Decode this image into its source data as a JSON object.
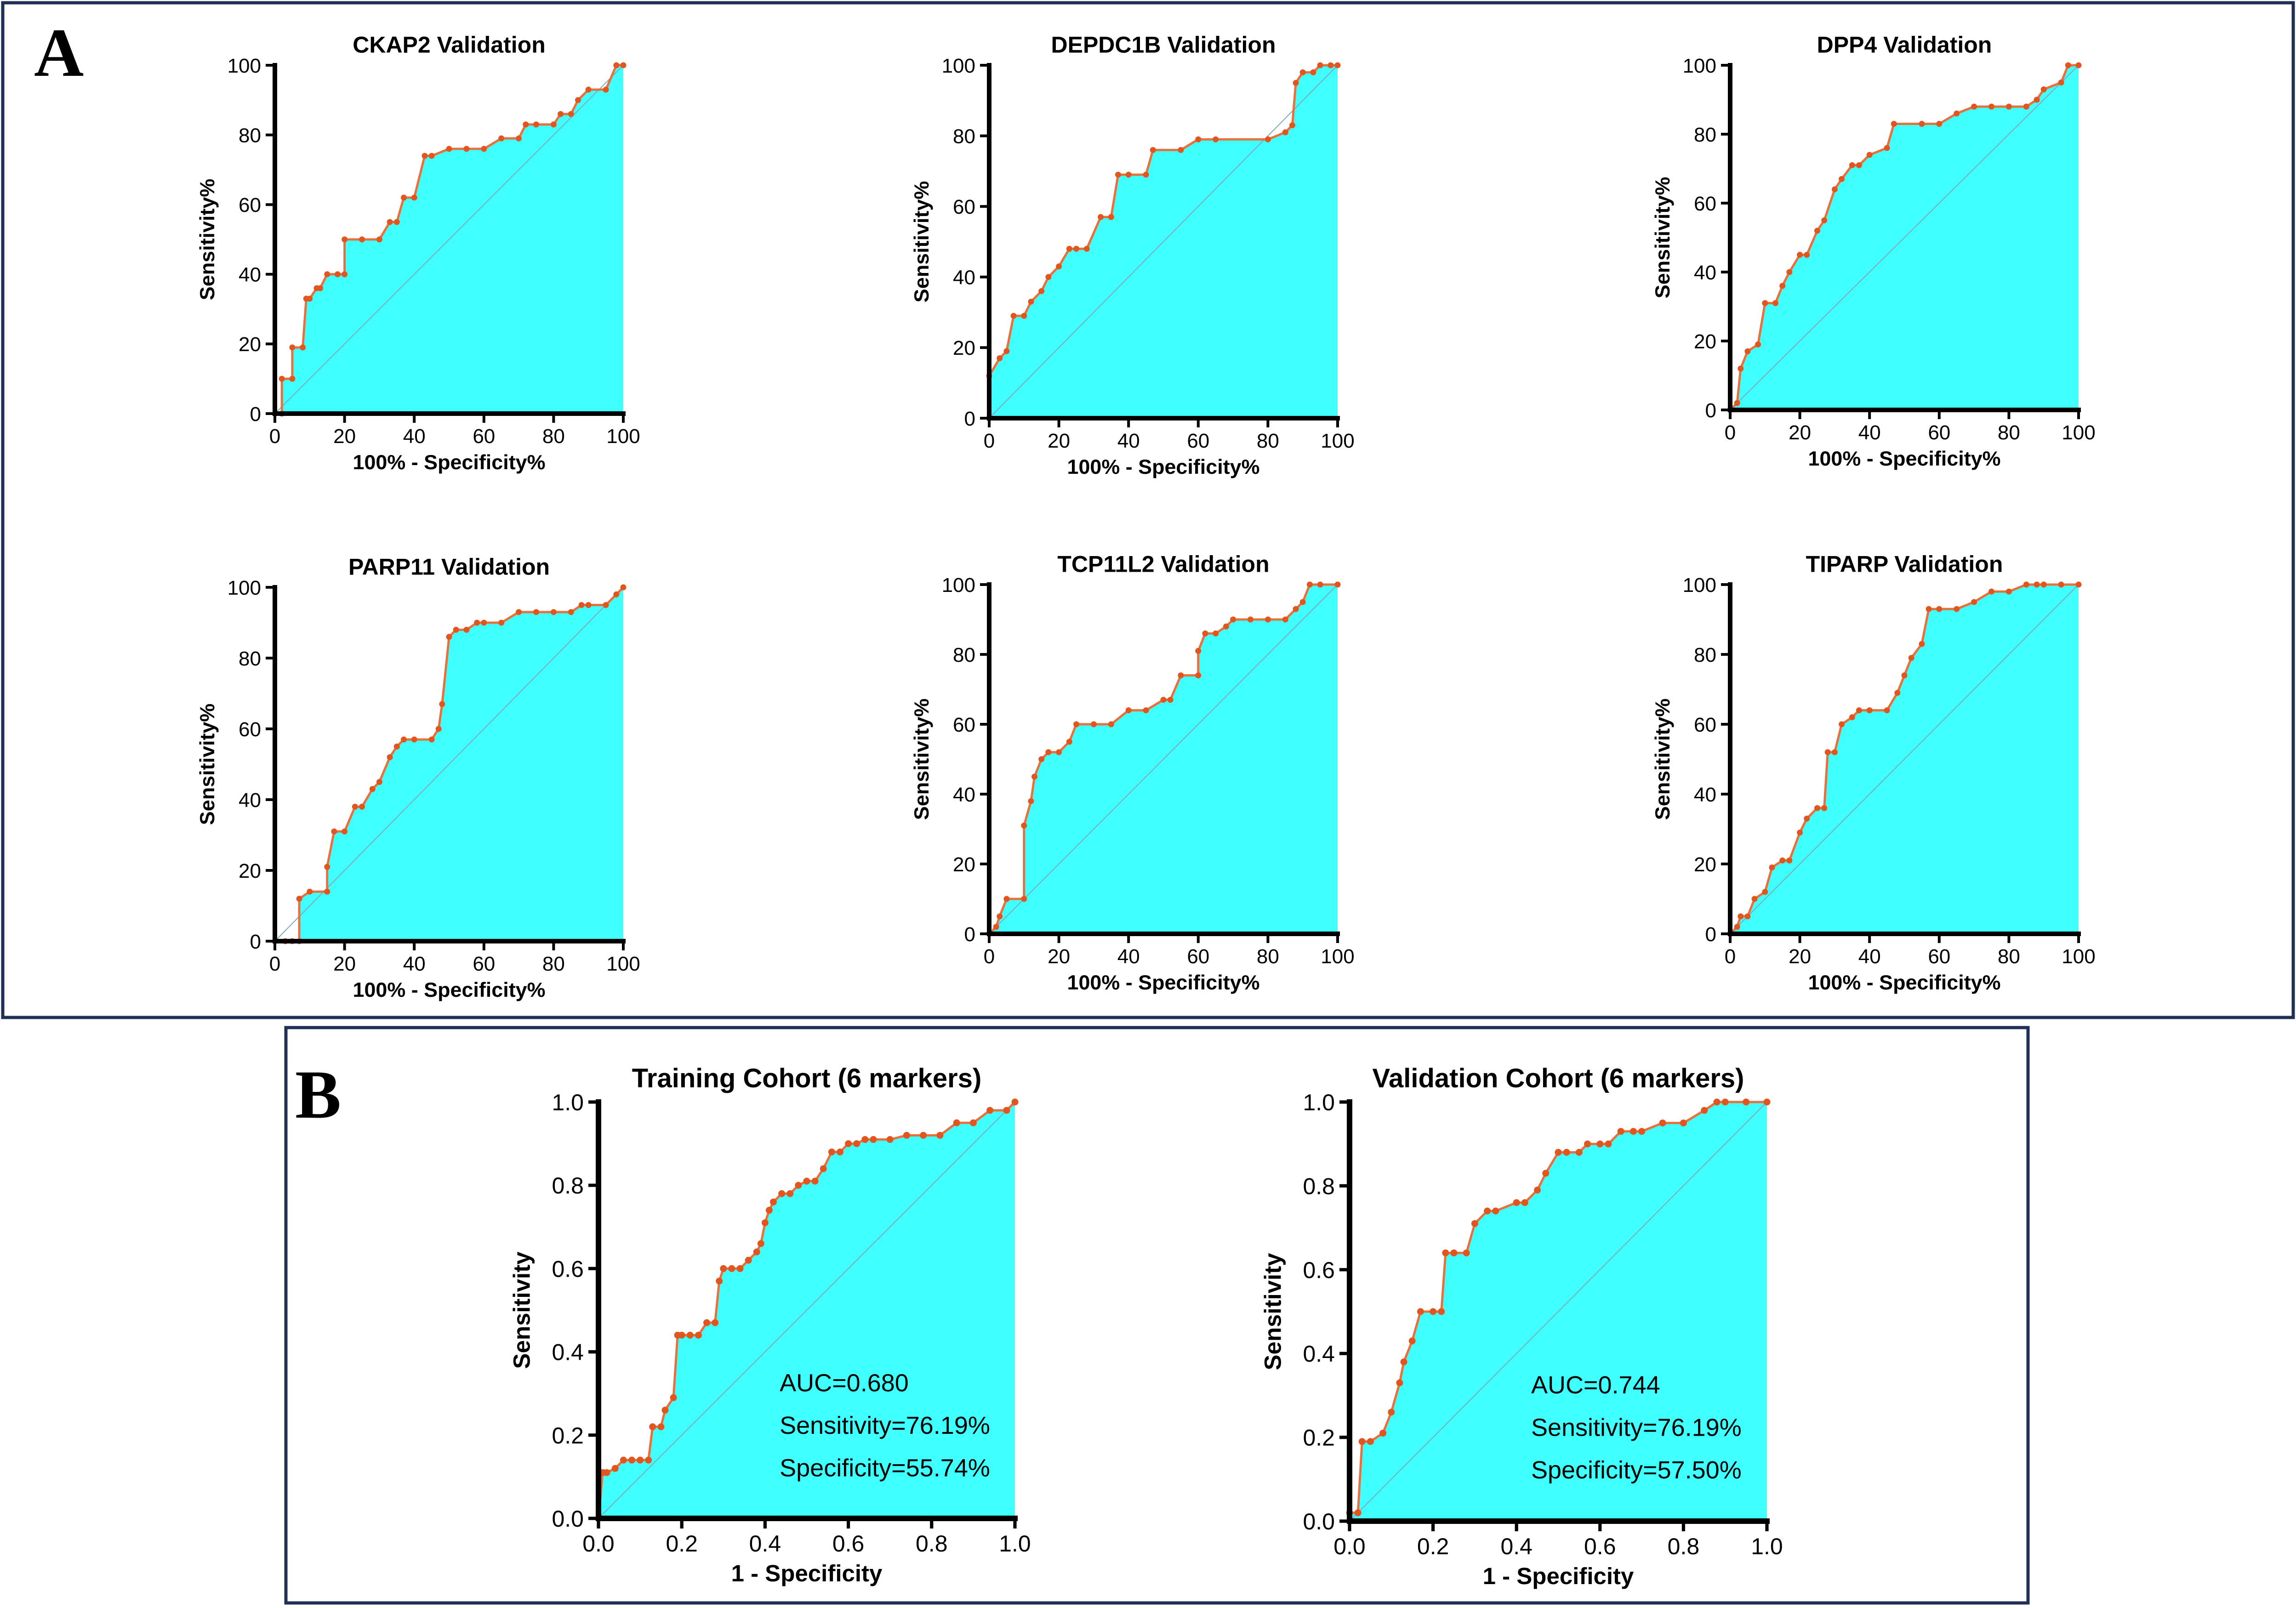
{
  "panels": {
    "a_label": "A",
    "b_label": "B"
  },
  "colors": {
    "fill": "#40ffff",
    "curve": "#e8703a",
    "marker": "#e0561e",
    "border": "#1f2f55",
    "diagonal": "#7fa9b8"
  },
  "chart_data": [
    {
      "type": "line",
      "title": "CKAP2 Validation",
      "xlabel": "100% - Specificity%",
      "ylabel": "Sensitivity%",
      "xlim": [
        0,
        100
      ],
      "ylim": [
        0,
        100
      ],
      "xticks": [
        "0",
        "20",
        "40",
        "60",
        "80",
        "100"
      ],
      "yticks": [
        "0",
        "20",
        "40",
        "60",
        "80",
        "100"
      ],
      "annotations": [],
      "x": [
        0,
        2,
        2,
        5,
        5,
        8,
        9,
        10,
        12,
        13,
        15,
        18,
        20,
        20,
        25,
        30,
        33,
        35,
        37,
        40,
        43,
        45,
        50,
        55,
        60,
        65,
        70,
        72,
        75,
        80,
        82,
        85,
        87,
        90,
        95,
        98,
        100
      ],
      "y": [
        0,
        0,
        10,
        10,
        19,
        19,
        33,
        33,
        36,
        36,
        40,
        40,
        40,
        50,
        50,
        50,
        55,
        55,
        62,
        62,
        74,
        74,
        76,
        76,
        76,
        79,
        79,
        83,
        83,
        83,
        86,
        86,
        90,
        93,
        93,
        100,
        100
      ]
    },
    {
      "type": "line",
      "title": "DEPDC1B Validation",
      "xlabel": "100% - Specificity%",
      "ylabel": "Sensitivity%",
      "xlim": [
        0,
        100
      ],
      "ylim": [
        0,
        100
      ],
      "xticks": [
        "0",
        "20",
        "40",
        "60",
        "80",
        "100"
      ],
      "yticks": [
        "0",
        "20",
        "40",
        "60",
        "80",
        "100"
      ],
      "annotations": [],
      "x": [
        0,
        0,
        3,
        5,
        7,
        10,
        12,
        15,
        17,
        20,
        23,
        25,
        28,
        32,
        35,
        37,
        40,
        45,
        47,
        55,
        60,
        65,
        80,
        85,
        87,
        88,
        90,
        93,
        95,
        98,
        100
      ],
      "y": [
        0,
        12,
        17,
        19,
        29,
        29,
        33,
        36,
        40,
        43,
        48,
        48,
        48,
        57,
        57,
        69,
        69,
        69,
        76,
        76,
        79,
        79,
        79,
        81,
        83,
        95,
        98,
        98,
        100,
        100,
        100
      ]
    },
    {
      "type": "line",
      "title": "DPP4 Validation",
      "xlabel": "100% - Specificity%",
      "ylabel": "Sensitivity%",
      "xlim": [
        0,
        100
      ],
      "ylim": [
        0,
        100
      ],
      "xticks": [
        "0",
        "20",
        "40",
        "60",
        "80",
        "100"
      ],
      "yticks": [
        "0",
        "20",
        "40",
        "60",
        "80",
        "100"
      ],
      "annotations": [],
      "x": [
        0,
        2,
        3,
        5,
        8,
        10,
        13,
        15,
        17,
        20,
        22,
        25,
        27,
        30,
        32,
        35,
        37,
        40,
        45,
        47,
        55,
        60,
        65,
        70,
        75,
        80,
        85,
        88,
        90,
        95,
        97,
        100
      ],
      "y": [
        0,
        2,
        12,
        17,
        19,
        31,
        31,
        36,
        40,
        45,
        45,
        52,
        55,
        64,
        67,
        71,
        71,
        74,
        76,
        83,
        83,
        83,
        86,
        88,
        88,
        88,
        88,
        90,
        93,
        95,
        100,
        100
      ]
    },
    {
      "type": "line",
      "title": "PARP11 Validation",
      "xlabel": "100% - Specificity%",
      "ylabel": "Sensitivity%",
      "xlim": [
        0,
        100
      ],
      "ylim": [
        0,
        100
      ],
      "xticks": [
        "0",
        "20",
        "40",
        "60",
        "80",
        "100"
      ],
      "yticks": [
        "0",
        "20",
        "40",
        "60",
        "80",
        "100"
      ],
      "annotations": [],
      "x": [
        0,
        3,
        5,
        7,
        7,
        10,
        15,
        15,
        17,
        20,
        23,
        25,
        28,
        30,
        33,
        35,
        37,
        40,
        45,
        47,
        48,
        50,
        52,
        55,
        58,
        60,
        65,
        70,
        75,
        80,
        85,
        88,
        90,
        95,
        98,
        100
      ],
      "y": [
        0,
        0,
        0,
        0,
        12,
        14,
        14,
        21,
        31,
        31,
        38,
        38,
        43,
        45,
        52,
        55,
        57,
        57,
        57,
        60,
        67,
        86,
        88,
        88,
        90,
        90,
        90,
        93,
        93,
        93,
        93,
        95,
        95,
        95,
        98,
        100
      ]
    },
    {
      "type": "line",
      "title": "TCP11L2 Validation",
      "xlabel": "100% - Specificity%",
      "ylabel": "Sensitivity%",
      "xlim": [
        0,
        100
      ],
      "ylim": [
        0,
        100
      ],
      "xticks": [
        "0",
        "20",
        "40",
        "60",
        "80",
        "100"
      ],
      "yticks": [
        "0",
        "20",
        "40",
        "60",
        "80",
        "100"
      ],
      "annotations": [],
      "x": [
        0,
        2,
        3,
        5,
        10,
        10,
        12,
        13,
        15,
        17,
        20,
        23,
        25,
        30,
        35,
        40,
        45,
        50,
        52,
        55,
        60,
        60,
        62,
        65,
        68,
        70,
        75,
        80,
        85,
        88,
        90,
        92,
        95,
        100
      ],
      "y": [
        0,
        2,
        5,
        10,
        10,
        31,
        38,
        45,
        50,
        52,
        52,
        55,
        60,
        60,
        60,
        64,
        64,
        67,
        67,
        74,
        74,
        81,
        86,
        86,
        88,
        90,
        90,
        90,
        90,
        93,
        95,
        100,
        100,
        100
      ]
    },
    {
      "type": "line",
      "title": "TIPARP Validation",
      "xlabel": "100% - Specificity%",
      "ylabel": "Sensitivity%",
      "xlim": [
        0,
        100
      ],
      "ylim": [
        0,
        100
      ],
      "xticks": [
        "0",
        "20",
        "40",
        "60",
        "80",
        "100"
      ],
      "yticks": [
        "0",
        "20",
        "40",
        "60",
        "80",
        "100"
      ],
      "annotations": [],
      "x": [
        0,
        2,
        3,
        5,
        7,
        10,
        12,
        15,
        17,
        20,
        22,
        25,
        27,
        28,
        30,
        32,
        35,
        37,
        40,
        45,
        48,
        50,
        52,
        55,
        57,
        60,
        65,
        70,
        75,
        80,
        85,
        88,
        90,
        95,
        100
      ],
      "y": [
        0,
        2,
        5,
        5,
        10,
        12,
        19,
        21,
        21,
        29,
        33,
        36,
        36,
        52,
        52,
        60,
        62,
        64,
        64,
        64,
        69,
        74,
        79,
        83,
        93,
        93,
        93,
        95,
        98,
        98,
        100,
        100,
        100,
        100,
        100
      ]
    },
    {
      "type": "line",
      "title": "Training Cohort (6 markers)",
      "xlabel": "1 - Specificity",
      "ylabel": "Sensitivity",
      "xlim": [
        0,
        1
      ],
      "ylim": [
        0,
        1
      ],
      "xticks": [
        "0.0",
        "0.2",
        "0.4",
        "0.6",
        "0.8",
        "1.0"
      ],
      "yticks": [
        "0.0",
        "0.2",
        "0.4",
        "0.6",
        "0.8",
        "1.0"
      ],
      "annotations": [
        "AUC=0.680",
        "Sensitivity=76.19%",
        "Specificity=55.74%"
      ],
      "x": [
        0,
        0.01,
        0.02,
        0.04,
        0.06,
        0.08,
        0.1,
        0.12,
        0.13,
        0.15,
        0.16,
        0.18,
        0.19,
        0.2,
        0.22,
        0.24,
        0.26,
        0.28,
        0.29,
        0.3,
        0.32,
        0.34,
        0.36,
        0.38,
        0.39,
        0.4,
        0.41,
        0.42,
        0.44,
        0.46,
        0.48,
        0.5,
        0.52,
        0.54,
        0.56,
        0.58,
        0.6,
        0.62,
        0.64,
        0.66,
        0.7,
        0.74,
        0.78,
        0.82,
        0.86,
        0.9,
        0.94,
        0.98,
        1.0
      ],
      "y": [
        0,
        0.11,
        0.11,
        0.12,
        0.14,
        0.14,
        0.14,
        0.14,
        0.22,
        0.22,
        0.26,
        0.29,
        0.44,
        0.44,
        0.44,
        0.44,
        0.47,
        0.47,
        0.57,
        0.6,
        0.6,
        0.6,
        0.62,
        0.64,
        0.66,
        0.71,
        0.74,
        0.76,
        0.78,
        0.78,
        0.8,
        0.81,
        0.81,
        0.84,
        0.88,
        0.88,
        0.9,
        0.9,
        0.91,
        0.91,
        0.91,
        0.92,
        0.92,
        0.92,
        0.95,
        0.95,
        0.98,
        0.98,
        1.0
      ]
    },
    {
      "type": "line",
      "title": "Validation Cohort (6 markers)",
      "xlabel": "1 - Specificity",
      "ylabel": "Sensitivity",
      "xlim": [
        0,
        1
      ],
      "ylim": [
        0,
        1
      ],
      "xticks": [
        "0.0",
        "0.2",
        "0.4",
        "0.6",
        "0.8",
        "1.0"
      ],
      "yticks": [
        "0.0",
        "0.2",
        "0.4",
        "0.6",
        "0.8",
        "1.0"
      ],
      "annotations": [
        "AUC=0.744",
        "Sensitivity=76.19%",
        "Specificity=57.50%"
      ],
      "x": [
        0,
        0.02,
        0.03,
        0.05,
        0.08,
        0.1,
        0.12,
        0.13,
        0.15,
        0.17,
        0.2,
        0.22,
        0.23,
        0.25,
        0.28,
        0.3,
        0.33,
        0.35,
        0.4,
        0.42,
        0.45,
        0.47,
        0.5,
        0.52,
        0.55,
        0.57,
        0.6,
        0.62,
        0.65,
        0.68,
        0.7,
        0.75,
        0.8,
        0.85,
        0.88,
        0.9,
        0.95,
        1.0
      ],
      "y": [
        0.02,
        0.02,
        0.19,
        0.19,
        0.21,
        0.26,
        0.33,
        0.38,
        0.43,
        0.5,
        0.5,
        0.5,
        0.64,
        0.64,
        0.64,
        0.71,
        0.74,
        0.74,
        0.76,
        0.76,
        0.79,
        0.83,
        0.88,
        0.88,
        0.88,
        0.9,
        0.9,
        0.9,
        0.93,
        0.93,
        0.93,
        0.95,
        0.95,
        0.98,
        1.0,
        1.0,
        1.0,
        1.0
      ]
    }
  ]
}
